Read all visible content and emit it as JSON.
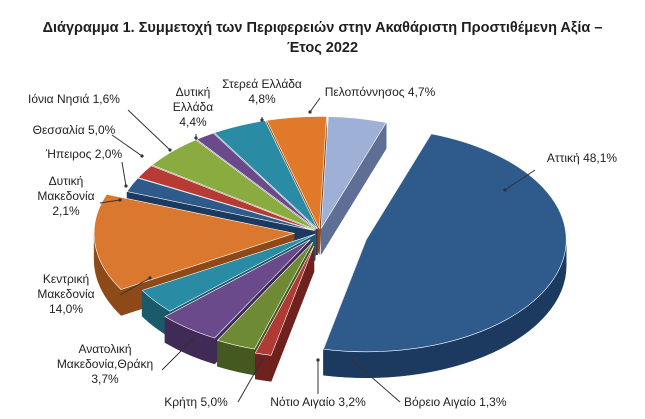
{
  "chart_data": {
    "type": "pie",
    "title": "Διάγραμμα 1. Συμμετοχή των Περιφερειών στην Ακαθάριστη Προστιθέμενη Αξία –",
    "subtitle": "Έτος 2022",
    "unit": "%",
    "slices": [
      {
        "label": [
          "Αττική 48,1%"
        ],
        "value": 48.1,
        "color": "#2f5a8c",
        "dark": "#1c3a5f"
      },
      {
        "label": [
          "Βόρειο Αιγαίο 1,3%"
        ],
        "value": 1.3,
        "color": "#b03a34",
        "dark": "#6e211d"
      },
      {
        "label": [
          "Νότιο Αιγαίο 3,2%"
        ],
        "value": 3.2,
        "color": "#6e8a35",
        "dark": "#445820"
      },
      {
        "label": [
          "Κρήτη 5,0%"
        ],
        "value": 5.0,
        "color": "#6a4a8a",
        "dark": "#3f2b55"
      },
      {
        "label": [
          "Ανατολική",
          "Μακεδονία,Θράκη",
          "3,7%"
        ],
        "value": 3.7,
        "color": "#2a8ca4",
        "dark": "#1a5a6b"
      },
      {
        "label": [
          "Κεντρική",
          "Μακεδονία",
          "14,0%"
        ],
        "value": 14.0,
        "color": "#d9782e",
        "dark": "#8d4a18"
      },
      {
        "label": [
          "Δυτική",
          "Μακεδονία",
          "2,1%"
        ],
        "value": 2.1,
        "color": "#2f5a8c",
        "dark": "#1c3a5f"
      },
      {
        "label": [
          "Ήπειρος 2,0%"
        ],
        "value": 2.0,
        "color": "#b83a34",
        "dark": "#6e211d"
      },
      {
        "label": [
          "Θεσσαλία 5,0%"
        ],
        "value": 5.0,
        "color": "#8aab40",
        "dark": "#56702a"
      },
      {
        "label": [
          "Ιόνια Νησιά 1,6%"
        ],
        "value": 1.6,
        "color": "#6a4a8a",
        "dark": "#3f2b55"
      },
      {
        "label": [
          "Δυτική",
          "Ελλάδα",
          "4,4%"
        ],
        "value": 4.4,
        "color": "#2a8ca4",
        "dark": "#1a5a6b"
      },
      {
        "label": [
          "Στερεά Ελλάδα",
          "4,8%"
        ],
        "value": 4.8,
        "color": "#e07a2a",
        "dark": "#8d4a18"
      },
      {
        "label": [
          "Πελοπόννησος 4,7%"
        ],
        "value": 4.7,
        "color": "#9fb0d6",
        "dark": "#5e6e94"
      }
    ]
  }
}
